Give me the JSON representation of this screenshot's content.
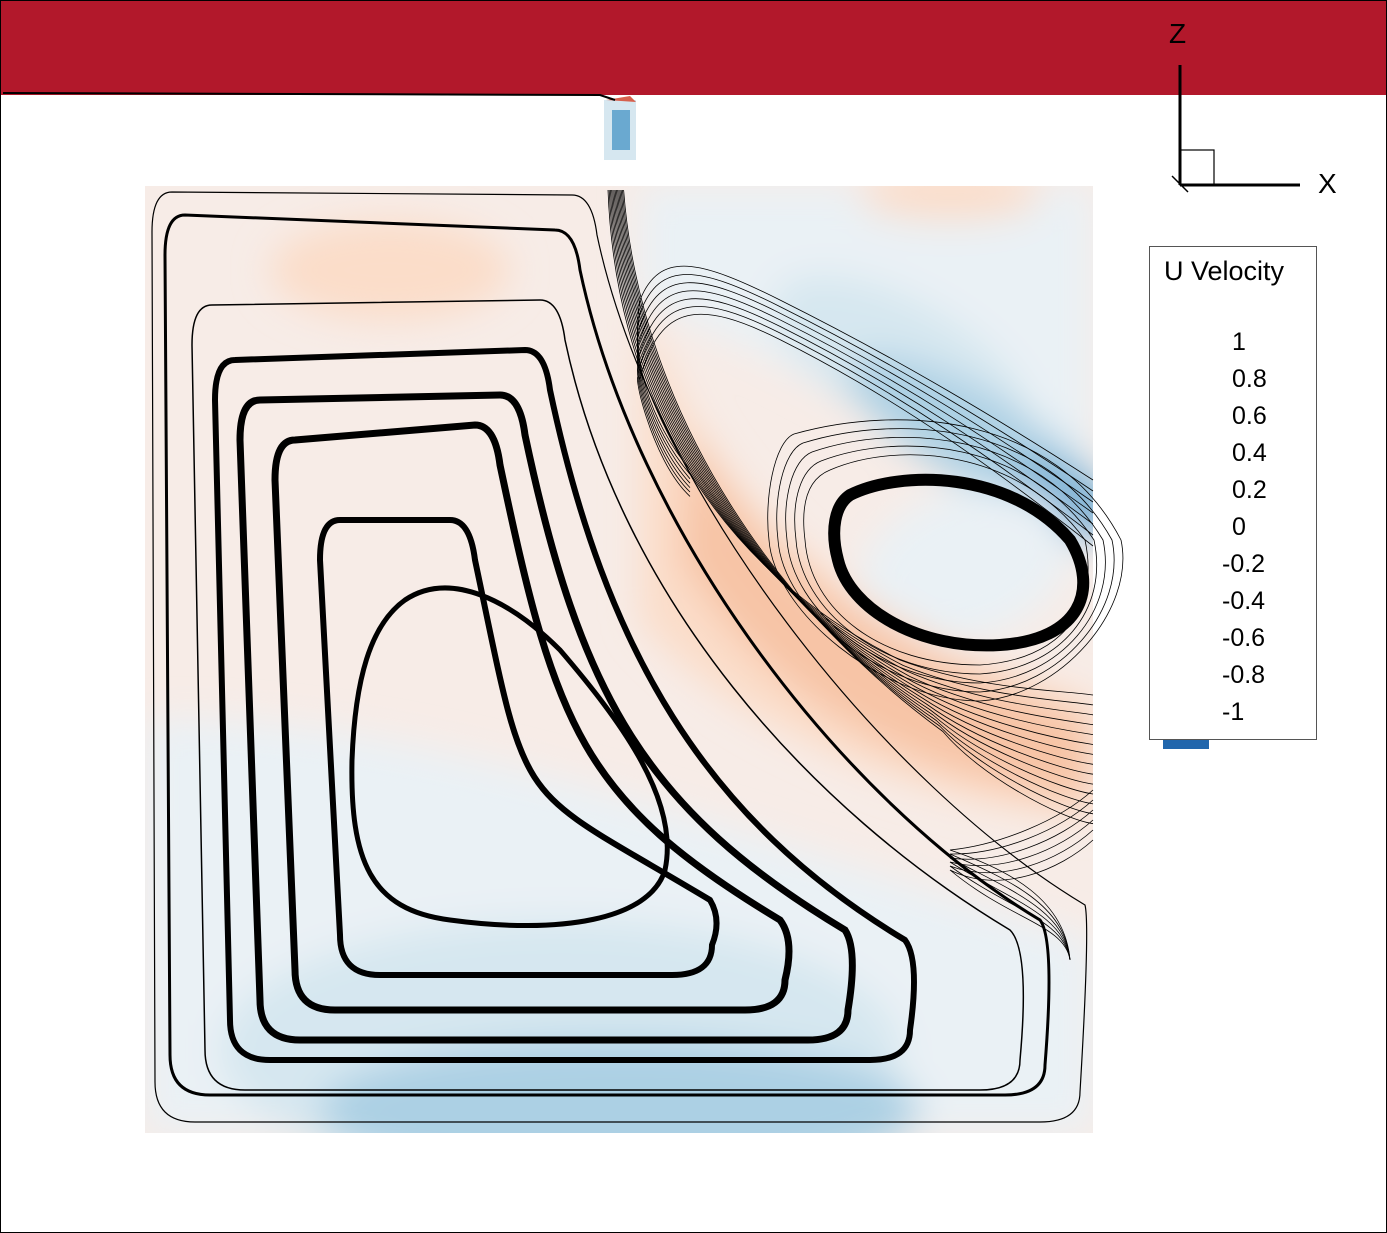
{
  "chart_data": {
    "type": "heatmap",
    "colorbar": {
      "title": "U Velocity",
      "levels": [
        1,
        0.8,
        0.6,
        0.4,
        0.2,
        0,
        -0.2,
        -0.4,
        -0.6,
        -0.8,
        -1
      ],
      "labels": [
        "1",
        "0.8",
        "0.6",
        "0.4",
        "0.2",
        "0",
        "-0.2",
        "-0.4",
        "-0.6",
        "-0.8",
        "-1"
      ],
      "colors": [
        "#b2182b",
        "#d6604d",
        "#f4a582",
        "#f7c4a6",
        "#fbddc9",
        "#f7ece7",
        "#eaf1f5",
        "#d6e7f0",
        "#acd0e4",
        "#6aa9d0",
        "#4384bd",
        "#2166ac"
      ]
    },
    "axes_triad": {
      "vertical": "Z",
      "horizontal": "X"
    },
    "lid_value": 1
  }
}
